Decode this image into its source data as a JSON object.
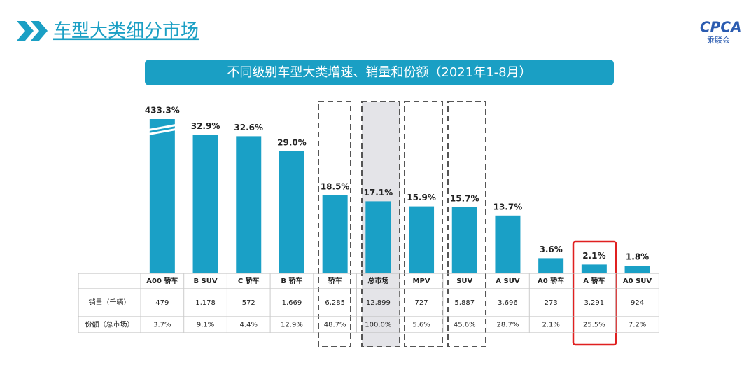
{
  "header": {
    "title": "车型大类细分市场",
    "logo": "CPCA",
    "logo_sub": "乘联会"
  },
  "chart_data": {
    "type": "bar",
    "title": "不同级别车型大类增速、销量和份额（2021年1-8月）",
    "categories": [
      "A00 轿车",
      "B SUV",
      "C 轿车",
      "B 轿车",
      "轿车",
      "总市场",
      "MPV",
      "SUV",
      "A SUV",
      "A0 轿车",
      "A 轿车",
      "A0 SUV"
    ],
    "values": [
      433.3,
      32.9,
      32.6,
      29.0,
      18.5,
      17.1,
      15.9,
      15.7,
      13.7,
      3.6,
      2.1,
      1.8
    ],
    "value_labels": [
      "433.3%",
      "32.9%",
      "32.6%",
      "29.0%",
      "18.5%",
      "17.1%",
      "15.9%",
      "15.7%",
      "13.7%",
      "3.6%",
      "2.1%",
      "1.8%"
    ],
    "color": "#1aa0c6",
    "ylim": [
      0,
      36
    ]
  },
  "table": {
    "rows": [
      [
        "销量（千辆）",
        "479",
        "1,178",
        "572",
        "1,669",
        "6,285",
        "12,899",
        "727",
        "5,887",
        "3,696",
        "273",
        "3,291",
        "924"
      ],
      [
        "份额（总市场）",
        "3.7%",
        "9.1%",
        "4.4%",
        "12.9%",
        "48.7%",
        "100.0%",
        "5.6%",
        "45.6%",
        "28.7%",
        "2.1%",
        "25.5%",
        "7.2%"
      ]
    ]
  }
}
